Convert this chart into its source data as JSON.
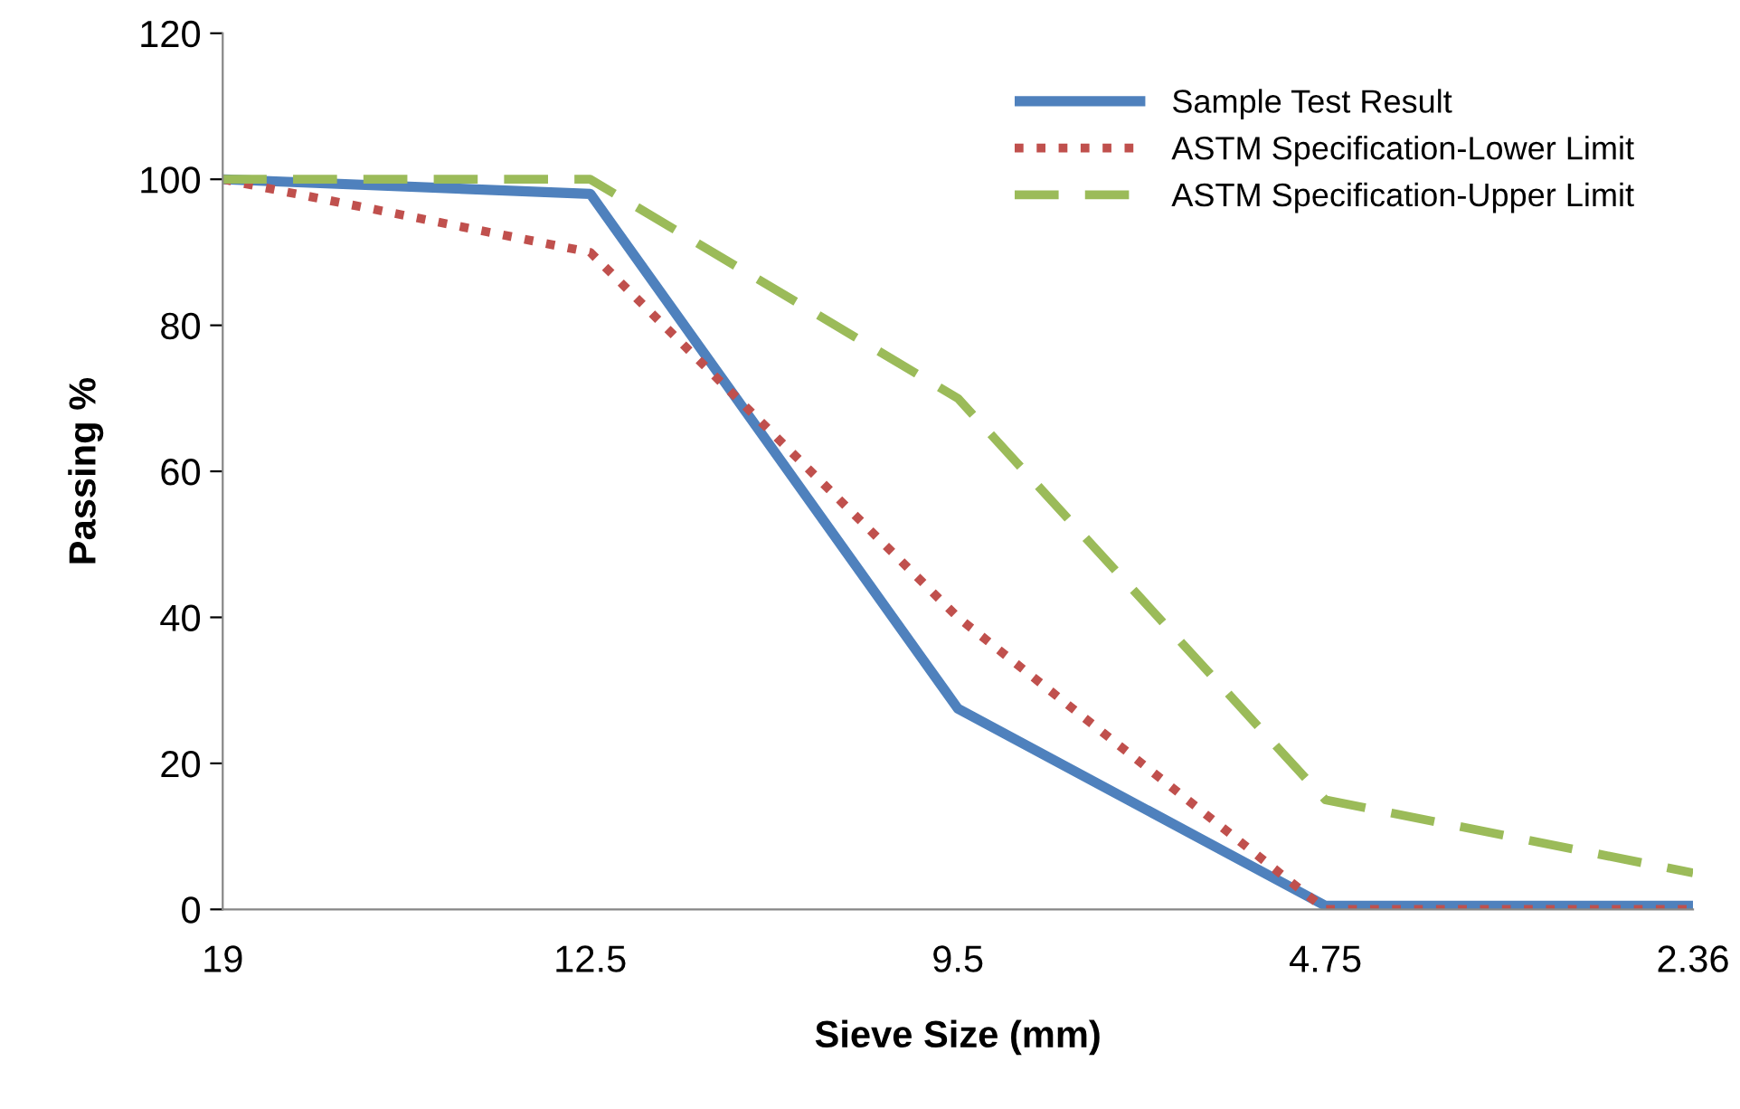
{
  "chart_data": {
    "type": "line",
    "xlabel": "Sieve Size (mm)",
    "ylabel": "Passing %",
    "categories": [
      "19",
      "12.5",
      "9.5",
      "4.75",
      "2.36"
    ],
    "series": [
      {
        "name": "Sample Test Result",
        "color": "#4f81bd",
        "line_style": "solid",
        "values": [
          100,
          98,
          27.5,
          0.5,
          0.5
        ]
      },
      {
        "name": "ASTM Specification-Lower Limit",
        "color": "#c0504d",
        "line_style": "dotted",
        "values": [
          100,
          90,
          40,
          0,
          0
        ]
      },
      {
        "name": "ASTM Specification-Upper Limit",
        "color": "#9bbb59",
        "line_style": "dashed",
        "values": [
          100,
          100,
          70,
          15,
          5
        ]
      }
    ],
    "ylim": [
      0,
      120
    ],
    "yticks": [
      0,
      20,
      40,
      60,
      80,
      100,
      120
    ],
    "grid": false,
    "legend": "top right",
    "marker": "none"
  }
}
